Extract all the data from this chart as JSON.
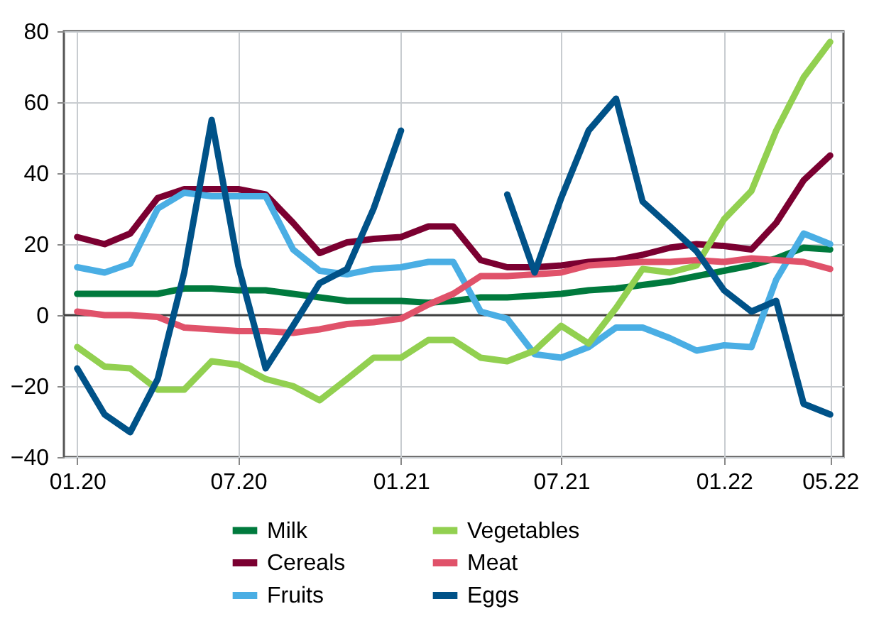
{
  "chart_data": {
    "type": "line",
    "x": [
      "2020-01",
      "2020-02",
      "2020-03",
      "2020-04",
      "2020-05",
      "2020-06",
      "2020-07",
      "2020-08",
      "2020-09",
      "2020-10",
      "2020-11",
      "2020-12",
      "2021-01",
      "2021-02",
      "2021-03",
      "2021-04",
      "2021-05",
      "2021-06",
      "2021-07",
      "2021-08",
      "2021-09",
      "2021-10",
      "2021-11",
      "2021-12",
      "2022-01",
      "2022-02",
      "2022-03",
      "2022-04",
      "2022-05"
    ],
    "series": [
      {
        "name": "Milk",
        "color": "#007a3d",
        "values": [
          6,
          6,
          6,
          6,
          7.5,
          7.5,
          7,
          7,
          6,
          5,
          4,
          4,
          4,
          3.5,
          4,
          5,
          5,
          5.5,
          6,
          7,
          7.5,
          8.5,
          9.5,
          11,
          12.5,
          14,
          16,
          19,
          18.5
        ]
      },
      {
        "name": "Cereals",
        "color": "#7b0031",
        "values": [
          22,
          20,
          23,
          33,
          35.5,
          35.5,
          35.5,
          34,
          26,
          17.5,
          20.5,
          21.5,
          22,
          25,
          25,
          15.5,
          13.5,
          13.5,
          14,
          15,
          15.5,
          17,
          19,
          20,
          19.5,
          18.5,
          26,
          38,
          45
        ]
      },
      {
        "name": "Fruits",
        "color": "#4aaee4",
        "values": [
          13.5,
          12,
          14.5,
          30,
          34.5,
          33.5,
          33.5,
          33.5,
          18.5,
          12.5,
          11.5,
          13,
          13.5,
          15,
          15,
          1,
          -1,
          -11,
          -12,
          -9,
          -3.5,
          -3.5,
          -6.5,
          -10,
          -8.5,
          -9,
          10,
          23,
          20
        ]
      },
      {
        "name": "Vegetables",
        "color": "#92d050",
        "values": [
          -9,
          -14.5,
          -15,
          -21,
          -21,
          -13,
          -14,
          -18,
          -20,
          -24,
          -18,
          -12,
          -12,
          -7,
          -7,
          -12,
          -13,
          -10,
          -3,
          -8,
          2,
          13,
          12,
          14,
          27,
          35,
          52,
          67,
          77
        ]
      },
      {
        "name": "Meat",
        "color": "#e0526a",
        "values": [
          1,
          0,
          0,
          -0.5,
          -3.5,
          -4,
          -4.5,
          -4.5,
          -5,
          -4,
          -2.5,
          -2,
          -1,
          3,
          6,
          11,
          11,
          11.5,
          12,
          14,
          14.5,
          15,
          15,
          15.5,
          15,
          16,
          15.5,
          15,
          13
        ]
      },
      {
        "name": "Eggs",
        "color": "#005288",
        "values": [
          -15,
          -28,
          -33,
          -18,
          12,
          55,
          14,
          -15,
          -3,
          9,
          13,
          30,
          52,
          null,
          null,
          null,
          34,
          12,
          33,
          52,
          61,
          32,
          25,
          18,
          7,
          1,
          4,
          -25,
          -28
        ]
      }
    ],
    "xlim": [
      "2019-12-17",
      "2022-05-16"
    ],
    "xticks": [
      {
        "value": "2020-01",
        "label": "01.20"
      },
      {
        "value": "2020-07",
        "label": "07.20"
      },
      {
        "value": "2021-01",
        "label": "01.21"
      },
      {
        "value": "2021-07",
        "label": "07.21"
      },
      {
        "value": "2022-01",
        "label": "01.22"
      },
      {
        "value": "2022-05",
        "label": "05.22"
      }
    ],
    "ylim": [
      -40,
      80
    ],
    "yticks": [
      -40,
      -20,
      0,
      20,
      40,
      60,
      80
    ],
    "ref_lines": [
      {
        "axis": "y",
        "value": 0,
        "color": "#404040"
      }
    ],
    "grid": true,
    "legend": "bottom",
    "marker": "none",
    "line_style": "solid"
  }
}
